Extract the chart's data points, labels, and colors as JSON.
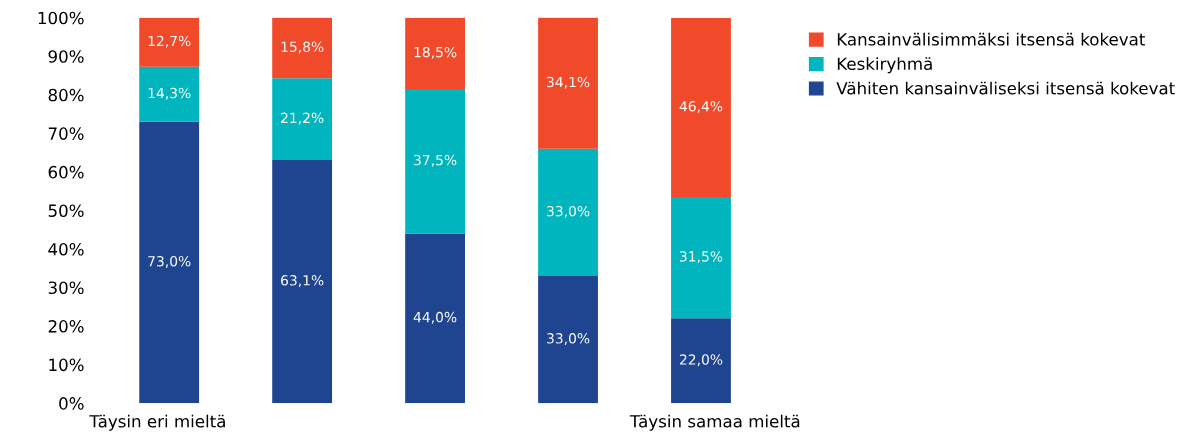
{
  "chart_data": {
    "type": "bar",
    "stacked": true,
    "categories": [
      "Täysin eri mieltä",
      null,
      null,
      null,
      "Täysin samaa mieltä"
    ],
    "series": [
      {
        "name": "Vähiten kansainväliseksi itsensä kokevat",
        "color": "#1f4591",
        "values": [
          73.0,
          63.1,
          44.0,
          33.0,
          22.0
        ],
        "value_labels": [
          "73,0%",
          "63,1%",
          "44,0%",
          "33,0%",
          "22,0%"
        ]
      },
      {
        "name": "Keskiryhmä",
        "color": "#00b5bd",
        "values": [
          14.3,
          21.2,
          37.5,
          33.0,
          31.5
        ],
        "value_labels": [
          "14,3%",
          "21,2%",
          "37,5%",
          "33,0%",
          "31,5%"
        ]
      },
      {
        "name": "Kansainvälisimmäksi itsensä kokevat",
        "color": "#f04a2b",
        "values": [
          12.7,
          15.8,
          18.5,
          34.1,
          46.4
        ],
        "value_labels": [
          "12,7%",
          "15,8%",
          "18,5%",
          "34,1%",
          "46,4%"
        ]
      }
    ],
    "ylim": [
      0,
      100
    ],
    "yticks": [
      {
        "value": 0,
        "label": "0%"
      },
      {
        "value": 10,
        "label": "10%"
      },
      {
        "value": 20,
        "label": "20%"
      },
      {
        "value": 30,
        "label": "30%"
      },
      {
        "value": 40,
        "label": "40%"
      },
      {
        "value": 50,
        "label": "50%"
      },
      {
        "value": 60,
        "label": "60%"
      },
      {
        "value": 70,
        "label": "70%"
      },
      {
        "value": 80,
        "label": "80%"
      },
      {
        "value": 90,
        "label": "90%"
      },
      {
        "value": 100,
        "label": "100%"
      }
    ],
    "legend": "right"
  }
}
